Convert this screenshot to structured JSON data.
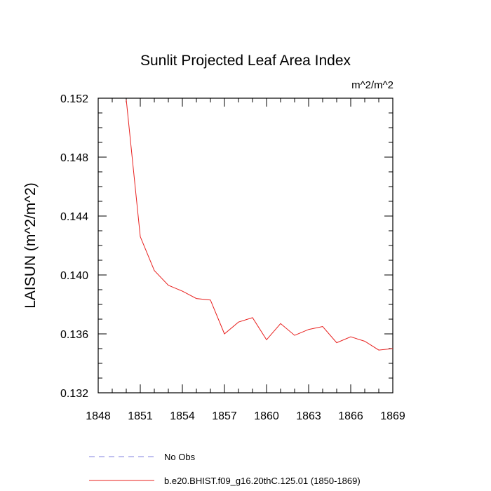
{
  "chart_data": {
    "type": "line",
    "title": "Sunlit Projected Leaf Area Index",
    "units": "m^2/m^2",
    "xlabel": "",
    "ylabel": "LAISUN  (m^2/m^2)",
    "xlim": [
      1848,
      1869
    ],
    "ylim": [
      0.132,
      0.152
    ],
    "xticks": [
      1848,
      1851,
      1854,
      1857,
      1860,
      1863,
      1866,
      1869
    ],
    "xtick_labels": [
      "1848",
      "1851",
      "1854",
      "1857",
      "1860",
      "1863",
      "1866",
      "1869"
    ],
    "yticks": [
      0.132,
      0.136,
      0.14,
      0.144,
      0.148,
      0.152
    ],
    "ytick_labels": [
      "0.132",
      "0.136",
      "0.140",
      "0.144",
      "0.148",
      "0.152"
    ],
    "series": [
      {
        "name": "b.e20.BHIST.f09_g16.20thC.125.01 (1850-1869)",
        "color": "#e8201e",
        "style": "solid",
        "x": [
          1850,
          1851,
          1852,
          1853,
          1854,
          1855,
          1856,
          1857,
          1858,
          1859,
          1860,
          1861,
          1862,
          1863,
          1864,
          1865,
          1866,
          1867,
          1868,
          1869
        ],
        "values": [
          0.1519,
          0.1426,
          0.1403,
          0.1393,
          0.1389,
          0.1384,
          0.1383,
          0.136,
          0.1368,
          0.1371,
          0.1356,
          0.1367,
          0.1359,
          0.1363,
          0.1365,
          0.1354,
          0.1358,
          0.1355,
          0.1349,
          0.135
        ]
      }
    ],
    "legend": [
      {
        "label": "No Obs",
        "color": "#8080e0",
        "style": "dashed"
      },
      {
        "label": "b.e20.BHIST.f09_g16.20thC.125.01 (1850-1869)",
        "color": "#e8201e",
        "style": "solid"
      }
    ]
  }
}
